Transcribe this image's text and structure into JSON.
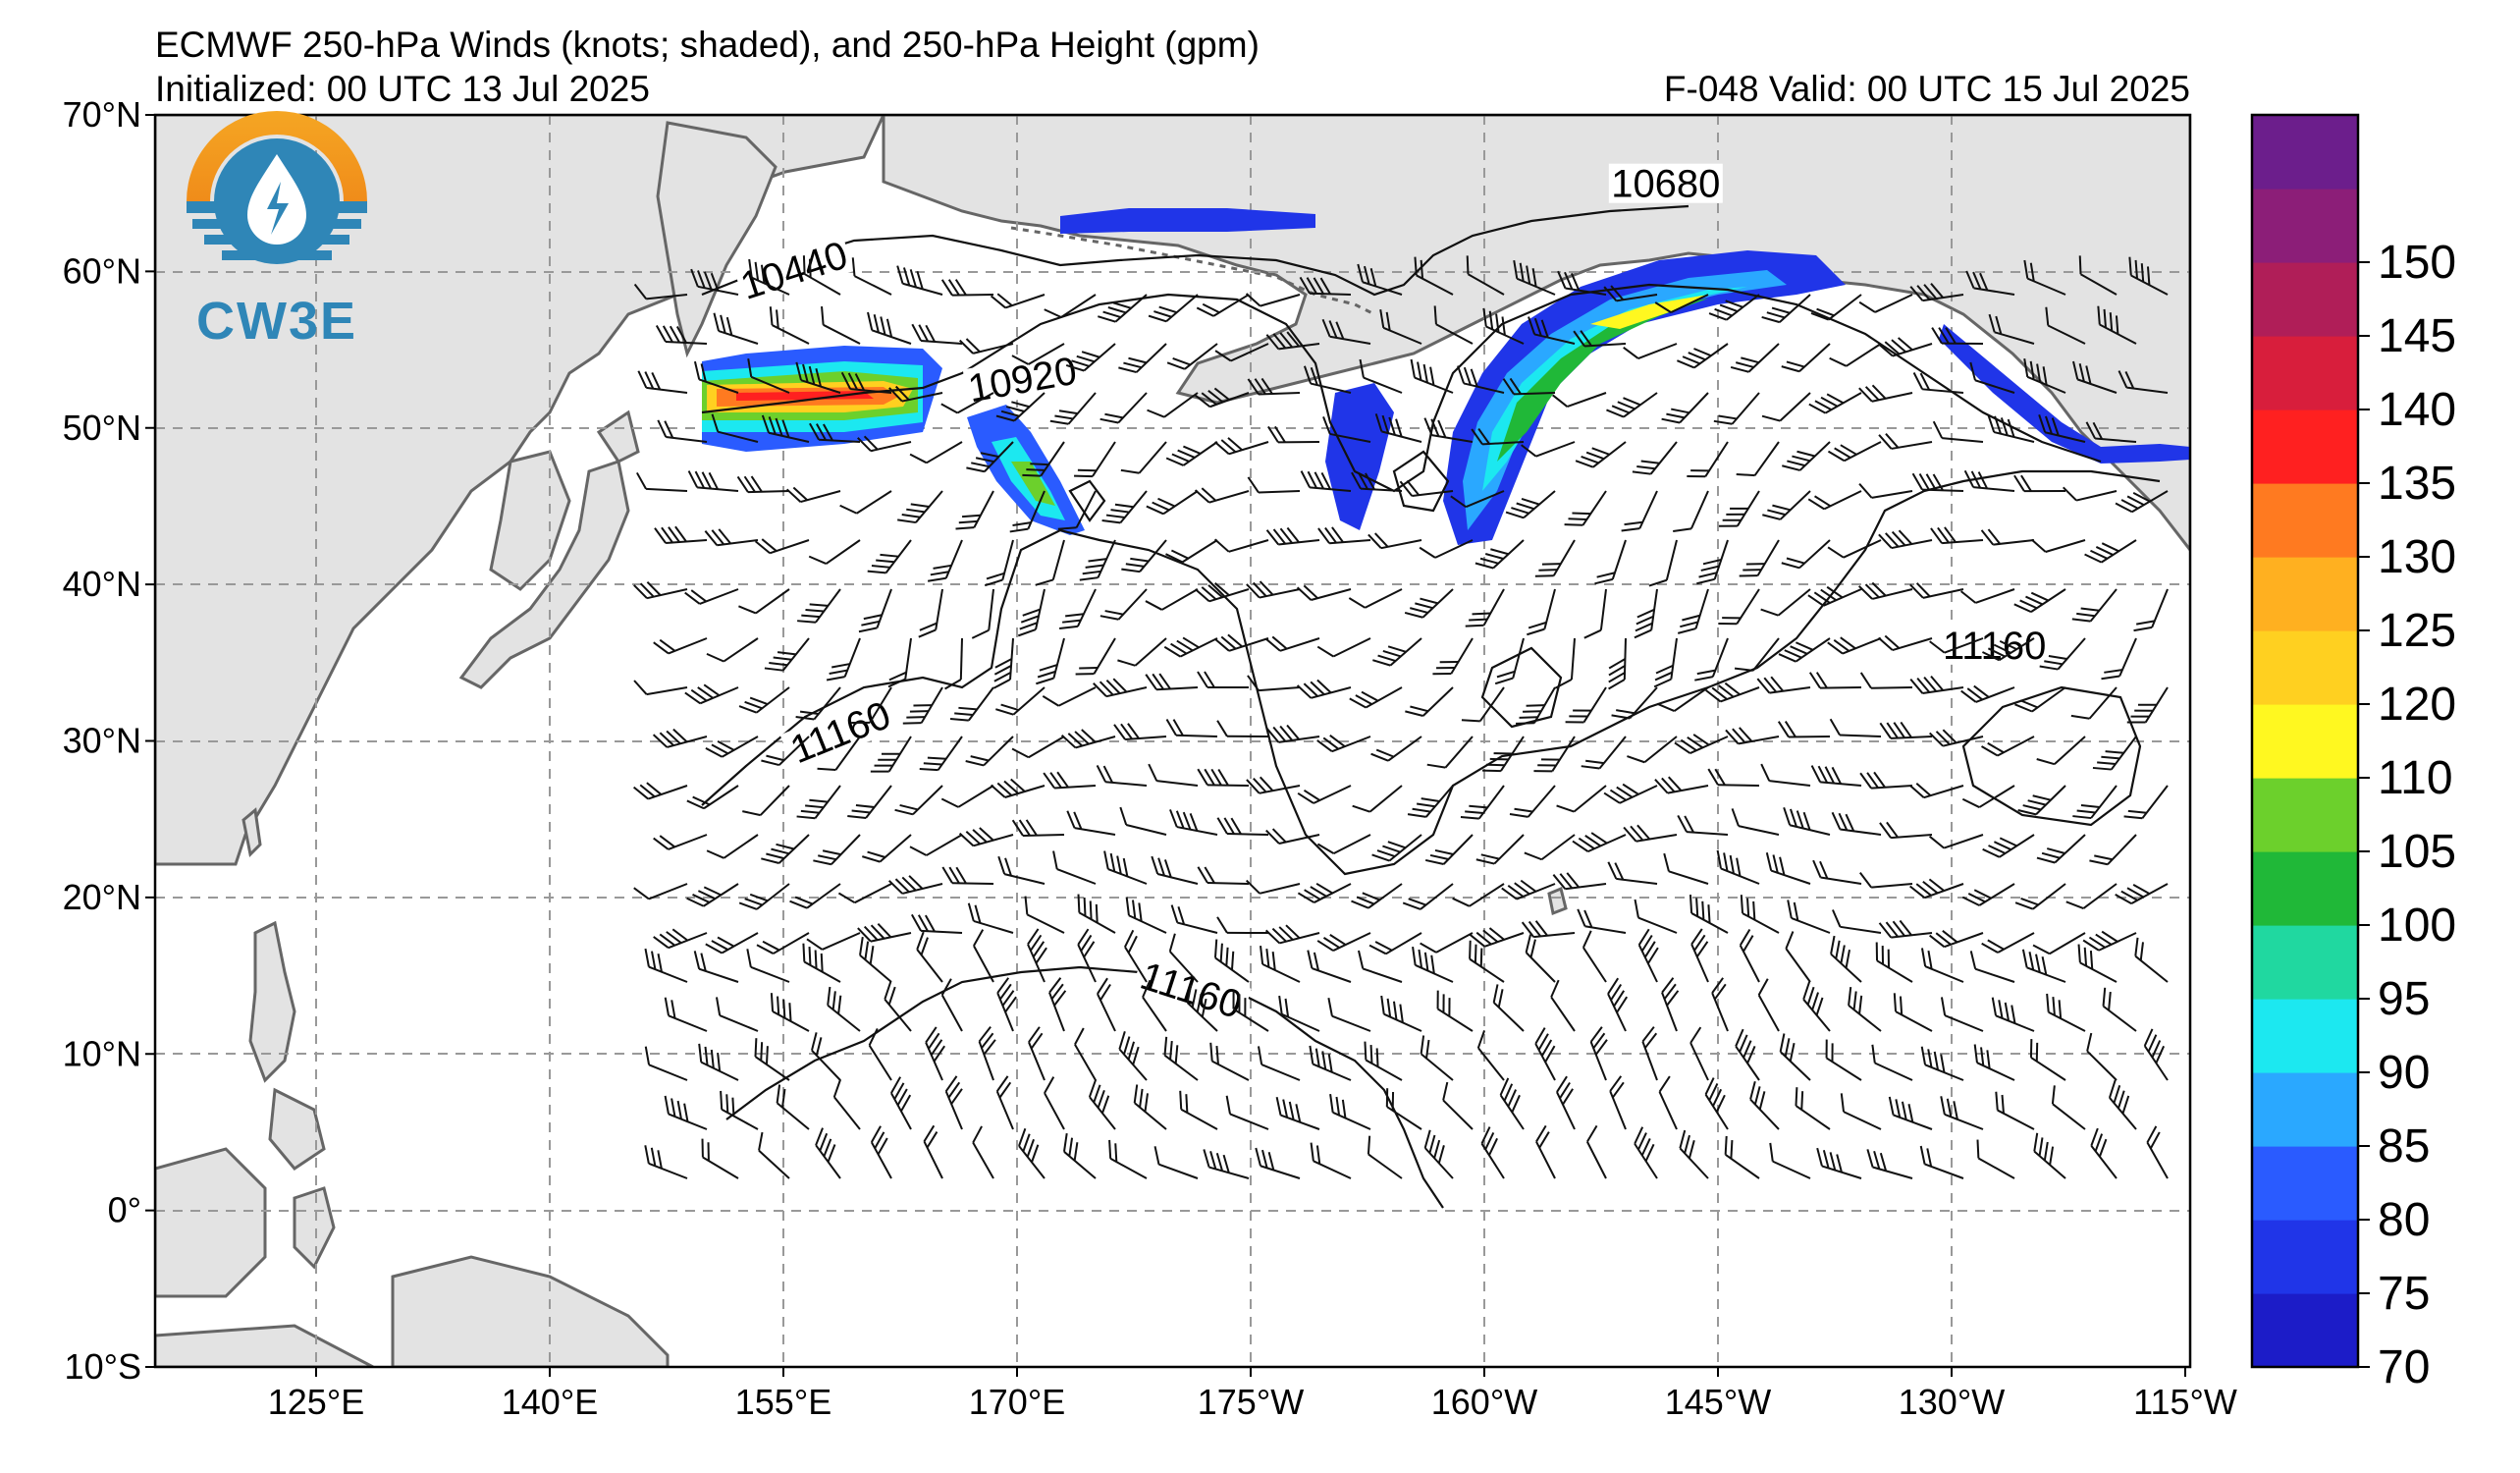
{
  "title": "ECMWF 250-hPa Winds (knots; shaded), and 250-hPa Height (gpm)",
  "initialized": "Initialized: 00 UTC 13 Jul 2025",
  "valid": "F-048  Valid: 00 UTC 15 Jul 2025",
  "logo_text": "CW3E",
  "lat_labels": [
    "70°N",
    "60°N",
    "50°N",
    "40°N",
    "30°N",
    "20°N",
    "10°N",
    "0°",
    "10°S"
  ],
  "lon_labels": [
    "125°E",
    "140°E",
    "155°E",
    "170°E",
    "175°W",
    "160°W",
    "145°W",
    "130°W",
    "115°W"
  ],
  "colorbar": {
    "ticks": [
      "70",
      "75",
      "80",
      "85",
      "90",
      "95",
      "100",
      "105",
      "110",
      "120",
      "125",
      "130",
      "135",
      "140",
      "145",
      "150"
    ],
    "colors": [
      "#1c1cc8",
      "#2035e8",
      "#2a5bff",
      "#2aa8ff",
      "#1ce8f0",
      "#20d8a0",
      "#20b838",
      "#6cd02c",
      "#fff820",
      "#ffd020",
      "#ffb020",
      "#ff7a20",
      "#ff2020",
      "#d81e3c",
      "#b01e58",
      "#8c1e78",
      "#6c1e8c"
    ]
  },
  "contour_labels": [
    {
      "text": "10440",
      "lon": 156,
      "lat": 59.5,
      "angle": -18
    },
    {
      "text": "10920",
      "lon": 170.5,
      "lat": 52.5,
      "angle": -10
    },
    {
      "text": "10680",
      "lon": -148.5,
      "lat": 65,
      "angle": 0
    },
    {
      "text": "11160",
      "lon": 159,
      "lat": 30,
      "angle": -22
    },
    {
      "text": "11160",
      "lon": -127.5,
      "lat": 35.5,
      "angle": 0
    },
    {
      "text": "11160",
      "lon": -179,
      "lat": 13.5,
      "angle": 18
    }
  ]
}
